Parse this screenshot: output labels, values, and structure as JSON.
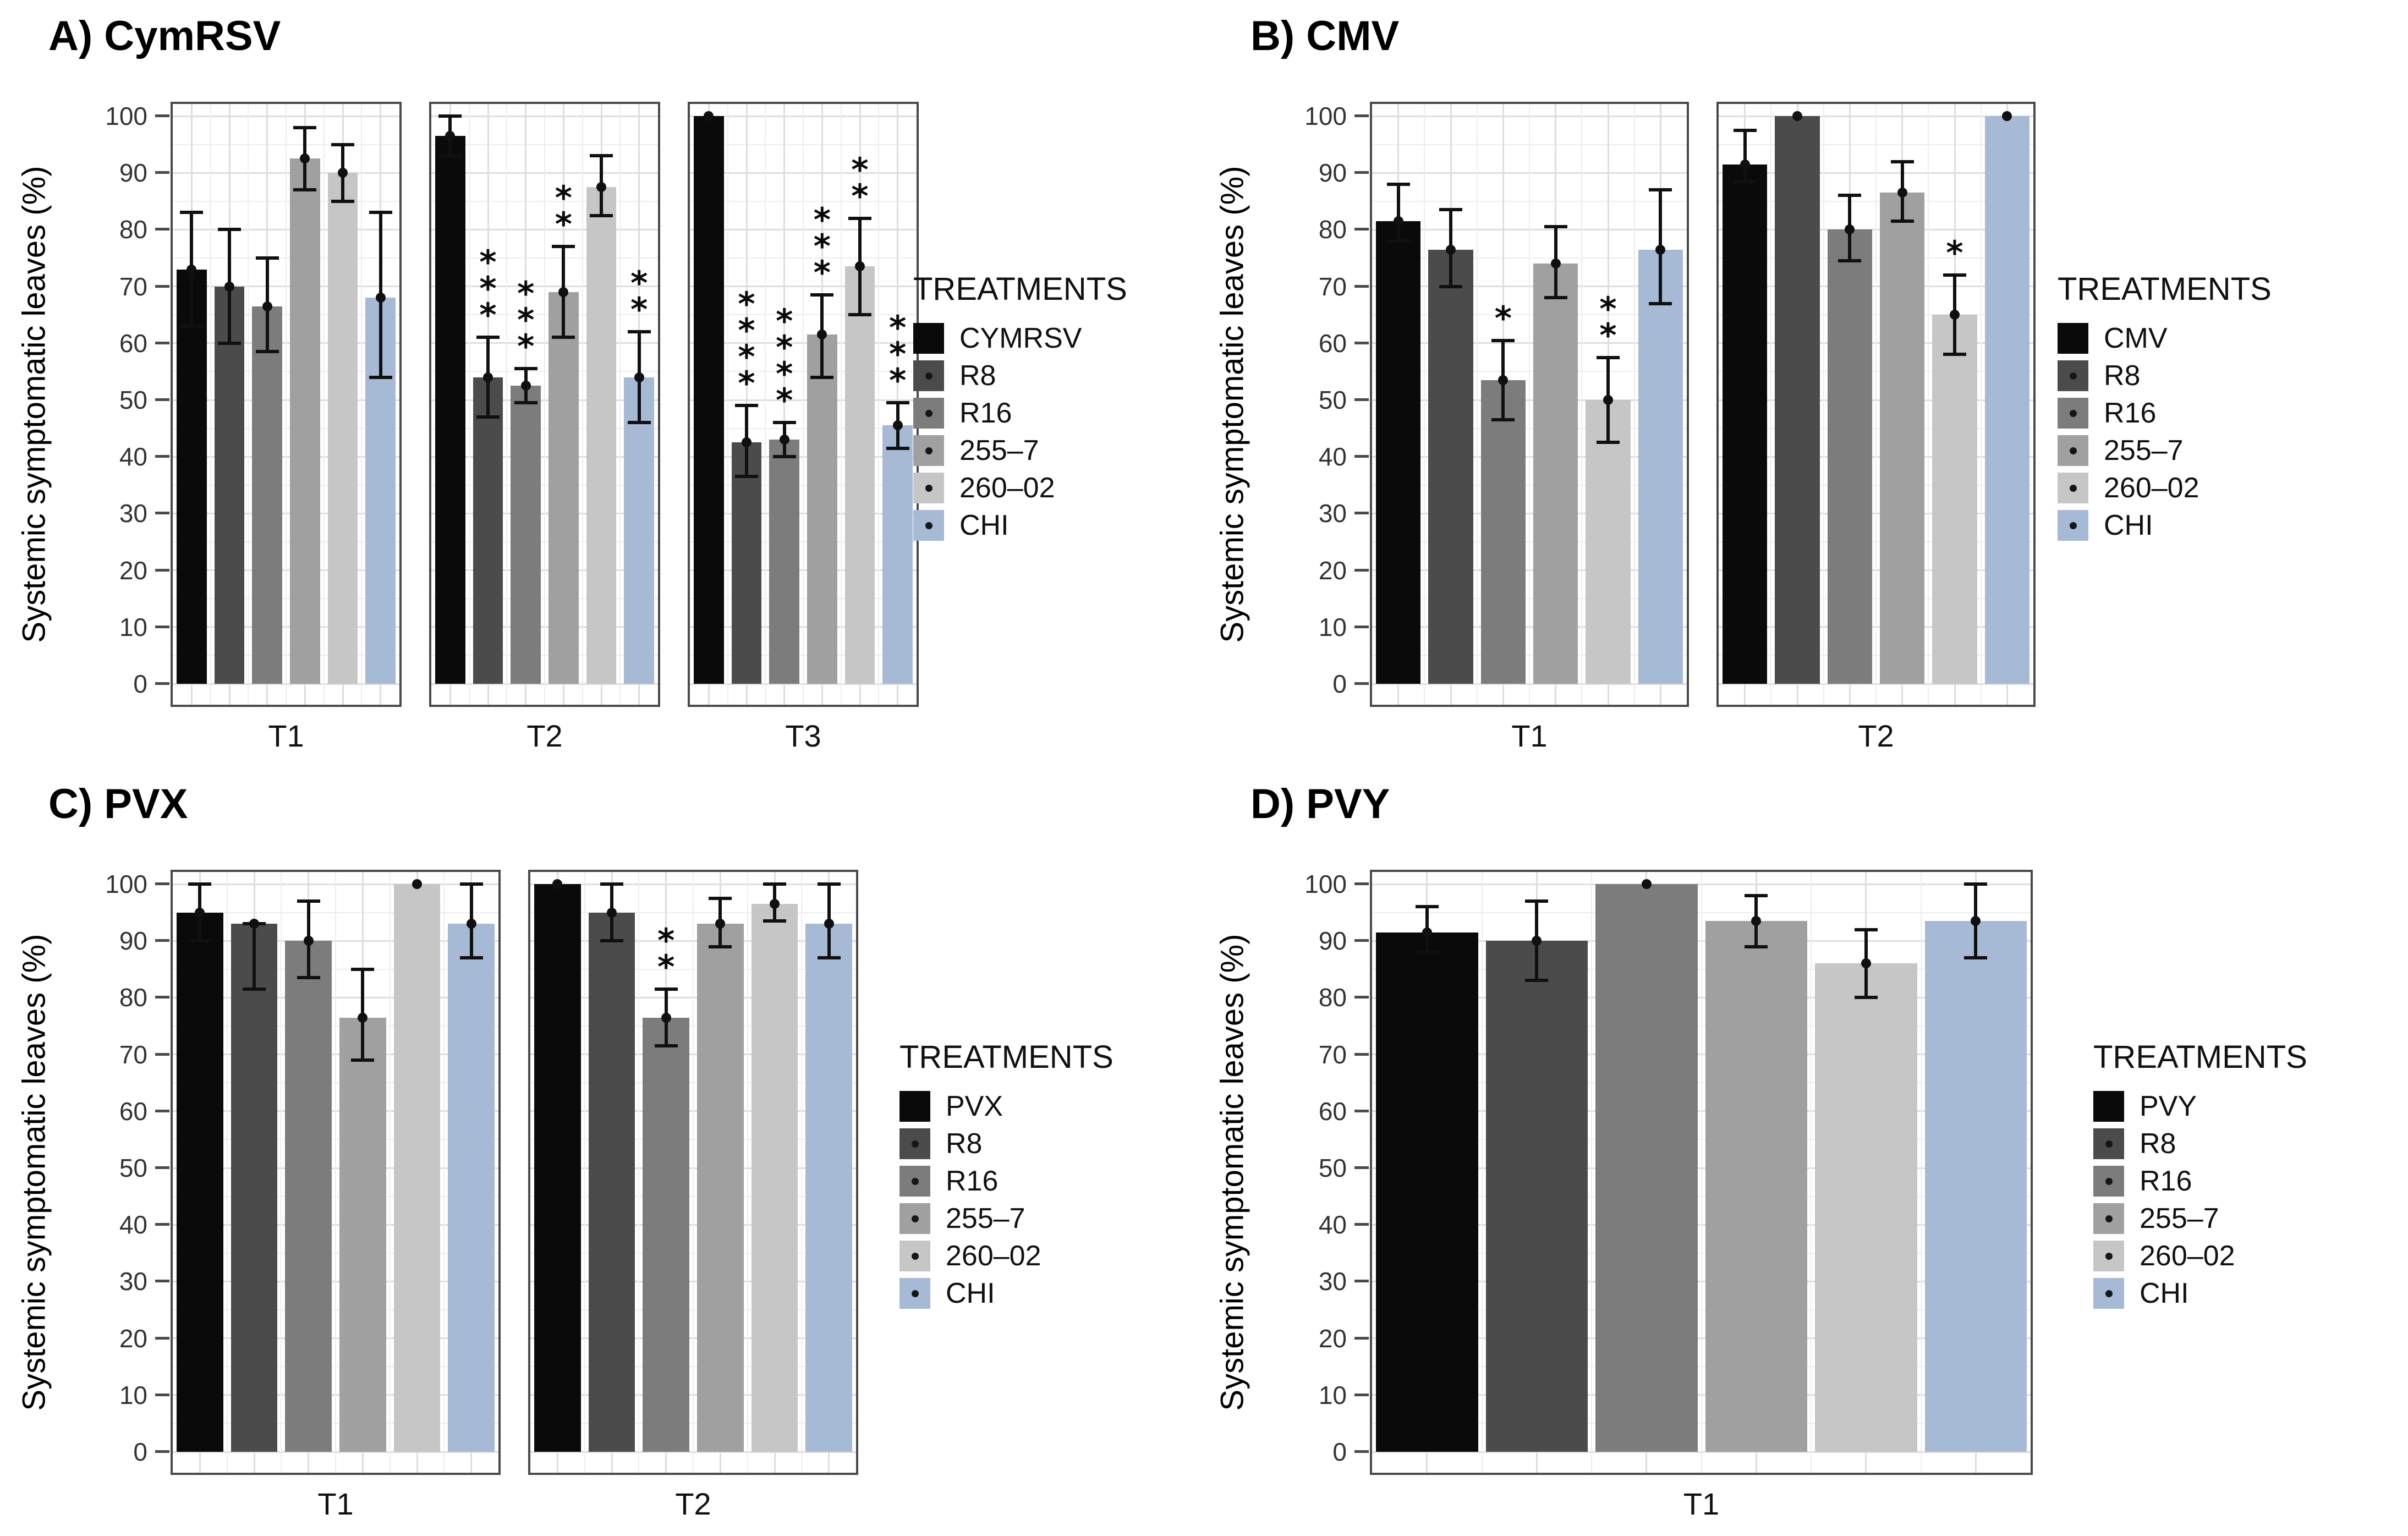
{
  "palette": {
    "bar_colors": [
      "#0a0a0a",
      "#4b4b4b",
      "#7c7c7c",
      "#a0a0a0",
      "#c6c6c6",
      "#a6bad6"
    ],
    "panel_border": "#4a4a4a",
    "grid_major": "#dedede",
    "grid_minor": "#eeeeee",
    "error_bar": "#101010"
  },
  "chart_data": [
    {
      "type": "bar",
      "panel": "A",
      "title": "A) CymRSV",
      "ylabel": "Systemic symptomatic leaves (%)",
      "ylim": [
        0,
        100
      ],
      "yticks": [
        0,
        10,
        20,
        30,
        40,
        50,
        60,
        70,
        80,
        90,
        100
      ],
      "grid": "on",
      "legend_position": "right",
      "legend_title": "TREATMENTS",
      "treatments": [
        "CYMRSV",
        "R8",
        "R16",
        "255–7",
        "260–02",
        "CHI"
      ],
      "legend_dots": [
        false,
        true,
        true,
        true,
        true,
        true
      ],
      "facets": [
        {
          "label": "T1",
          "bars": [
            {
              "treatment": "CYMRSV",
              "value": 73,
              "err_low": 63,
              "err_high": 83,
              "sig": ""
            },
            {
              "treatment": "R8",
              "value": 70,
              "err_low": 60,
              "err_high": 80,
              "sig": ""
            },
            {
              "treatment": "R16",
              "value": 66.5,
              "err_low": 58.5,
              "err_high": 75,
              "sig": ""
            },
            {
              "treatment": "255–7",
              "value": 92.5,
              "err_low": 87,
              "err_high": 98,
              "sig": ""
            },
            {
              "treatment": "260–02",
              "value": 90,
              "err_low": 85,
              "err_high": 95,
              "sig": ""
            },
            {
              "treatment": "CHI",
              "value": 68,
              "err_low": 54,
              "err_high": 83,
              "sig": ""
            }
          ]
        },
        {
          "label": "T2",
          "bars": [
            {
              "treatment": "CYMRSV",
              "value": 96.5,
              "err_low": 93,
              "err_high": 100,
              "sig": ""
            },
            {
              "treatment": "R8",
              "value": 54,
              "err_low": 47,
              "err_high": 61,
              "sig": "***"
            },
            {
              "treatment": "R16",
              "value": 52.5,
              "err_low": 49.5,
              "err_high": 55.5,
              "sig": "***"
            },
            {
              "treatment": "255–7",
              "value": 69,
              "err_low": 61,
              "err_high": 77,
              "sig": "**"
            },
            {
              "treatment": "260–02",
              "value": 87.5,
              "err_low": 82.5,
              "err_high": 93,
              "sig": ""
            },
            {
              "treatment": "CHI",
              "value": 54,
              "err_low": 46,
              "err_high": 62,
              "sig": "**"
            }
          ]
        },
        {
          "label": "T3",
          "bars": [
            {
              "treatment": "CYMRSV",
              "value": 100,
              "err_low": 100,
              "err_high": 100,
              "sig": ""
            },
            {
              "treatment": "R8",
              "value": 42.5,
              "err_low": 36.5,
              "err_high": 49,
              "sig": "****"
            },
            {
              "treatment": "R16",
              "value": 43,
              "err_low": 40,
              "err_high": 46,
              "sig": "****"
            },
            {
              "treatment": "255–7",
              "value": 61.5,
              "err_low": 54,
              "err_high": 68.5,
              "sig": "***"
            },
            {
              "treatment": "260–02",
              "value": 73.5,
              "err_low": 65,
              "err_high": 82,
              "sig": "**"
            },
            {
              "treatment": "CHI",
              "value": 45.5,
              "err_low": 41.5,
              "err_high": 49.5,
              "sig": "***"
            }
          ]
        }
      ]
    },
    {
      "type": "bar",
      "panel": "B",
      "title": "B) CMV",
      "ylabel": "Systemic symptomatic leaves (%)",
      "ylim": [
        0,
        100
      ],
      "yticks": [
        0,
        10,
        20,
        30,
        40,
        50,
        60,
        70,
        80,
        90,
        100
      ],
      "grid": "on",
      "legend_position": "right",
      "legend_title": "TREATMENTS",
      "treatments": [
        "CMV",
        "R8",
        "R16",
        "255–7",
        "260–02",
        "CHI"
      ],
      "legend_dots": [
        false,
        true,
        true,
        true,
        true,
        true
      ],
      "facets": [
        {
          "label": "T1",
          "bars": [
            {
              "treatment": "CMV",
              "value": 81.5,
              "err_low": 78,
              "err_high": 88,
              "sig": ""
            },
            {
              "treatment": "R8",
              "value": 76.5,
              "err_low": 70,
              "err_high": 83.5,
              "sig": ""
            },
            {
              "treatment": "R16",
              "value": 53.5,
              "err_low": 46.5,
              "err_high": 60.5,
              "sig": "*"
            },
            {
              "treatment": "255–7",
              "value": 74,
              "err_low": 68,
              "err_high": 80.5,
              "sig": ""
            },
            {
              "treatment": "260–02",
              "value": 50,
              "err_low": 42.5,
              "err_high": 57.5,
              "sig": "**"
            },
            {
              "treatment": "CHI",
              "value": 76.5,
              "err_low": 67,
              "err_high": 87,
              "sig": ""
            }
          ]
        },
        {
          "label": "T2",
          "bars": [
            {
              "treatment": "CMV",
              "value": 91.5,
              "err_low": 88.5,
              "err_high": 97.5,
              "sig": ""
            },
            {
              "treatment": "R8",
              "value": 100,
              "err_low": 100,
              "err_high": 100,
              "sig": ""
            },
            {
              "treatment": "R16",
              "value": 80,
              "err_low": 74.5,
              "err_high": 86,
              "sig": ""
            },
            {
              "treatment": "255–7",
              "value": 86.5,
              "err_low": 81.5,
              "err_high": 92,
              "sig": ""
            },
            {
              "treatment": "260–02",
              "value": 65,
              "err_low": 58,
              "err_high": 72,
              "sig": "*"
            },
            {
              "treatment": "CHI",
              "value": 100,
              "err_low": 100,
              "err_high": 100,
              "sig": ""
            }
          ]
        }
      ]
    },
    {
      "type": "bar",
      "panel": "C",
      "title": "C) PVX",
      "ylabel": "Systemic symptomatic leaves (%)",
      "ylim": [
        0,
        100
      ],
      "yticks": [
        0,
        10,
        20,
        30,
        40,
        50,
        60,
        70,
        80,
        90,
        100
      ],
      "grid": "on",
      "legend_position": "right",
      "legend_title": "TREATMENTS",
      "treatments": [
        "PVX",
        "R8",
        "R16",
        "255–7",
        "260–02",
        "CHI"
      ],
      "legend_dots": [
        false,
        true,
        true,
        true,
        true,
        true
      ],
      "facets": [
        {
          "label": "T1",
          "bars": [
            {
              "treatment": "PVX",
              "value": 95,
              "err_low": 90,
              "err_high": 100,
              "sig": ""
            },
            {
              "treatment": "R8",
              "value": 93,
              "err_low": 81.5,
              "err_high": 93,
              "sig": ""
            },
            {
              "treatment": "R16",
              "value": 90,
              "err_low": 83.5,
              "err_high": 97,
              "sig": ""
            },
            {
              "treatment": "255–7",
              "value": 76.5,
              "err_low": 69,
              "err_high": 85,
              "sig": ""
            },
            {
              "treatment": "260–02",
              "value": 100,
              "err_low": 100,
              "err_high": 100,
              "sig": ""
            },
            {
              "treatment": "CHI",
              "value": 93,
              "err_low": 87,
              "err_high": 100,
              "sig": ""
            }
          ]
        },
        {
          "label": "T2",
          "bars": [
            {
              "treatment": "PVX",
              "value": 100,
              "err_low": 100,
              "err_high": 100,
              "sig": ""
            },
            {
              "treatment": "R8",
              "value": 95,
              "err_low": 90,
              "err_high": 100,
              "sig": ""
            },
            {
              "treatment": "R16",
              "value": 76.5,
              "err_low": 71.5,
              "err_high": 81.5,
              "sig": "**"
            },
            {
              "treatment": "255–7",
              "value": 93,
              "err_low": 89,
              "err_high": 97.5,
              "sig": ""
            },
            {
              "treatment": "260–02",
              "value": 96.5,
              "err_low": 93.5,
              "err_high": 100,
              "sig": ""
            },
            {
              "treatment": "CHI",
              "value": 93,
              "err_low": 87,
              "err_high": 100,
              "sig": ""
            }
          ]
        }
      ]
    },
    {
      "type": "bar",
      "panel": "D",
      "title": "D) PVY",
      "ylabel": "Systemic symptomatic leaves (%)",
      "ylim": [
        0,
        100
      ],
      "yticks": [
        0,
        10,
        20,
        30,
        40,
        50,
        60,
        70,
        80,
        90,
        100
      ],
      "grid": "on",
      "legend_position": "right",
      "legend_title": "TREATMENTS",
      "treatments": [
        "PVY",
        "R8",
        "R16",
        "255–7",
        "260–02",
        "CHI"
      ],
      "legend_dots": [
        false,
        true,
        true,
        true,
        true,
        true
      ],
      "facets": [
        {
          "label": "T1",
          "bars": [
            {
              "treatment": "PVY",
              "value": 91.5,
              "err_low": 88,
              "err_high": 96,
              "sig": ""
            },
            {
              "treatment": "R8",
              "value": 90,
              "err_low": 83,
              "err_high": 97,
              "sig": ""
            },
            {
              "treatment": "R16",
              "value": 100,
              "err_low": 100,
              "err_high": 100,
              "sig": ""
            },
            {
              "treatment": "255–7",
              "value": 93.5,
              "err_low": 89,
              "err_high": 98,
              "sig": ""
            },
            {
              "treatment": "260–02",
              "value": 86,
              "err_low": 80,
              "err_high": 92,
              "sig": ""
            },
            {
              "treatment": "CHI",
              "value": 93.5,
              "err_low": 87,
              "err_high": 100,
              "sig": ""
            }
          ]
        }
      ]
    }
  ]
}
